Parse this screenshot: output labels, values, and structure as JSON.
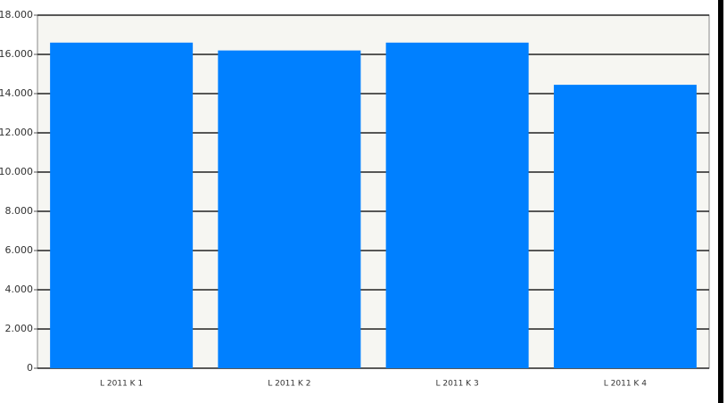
{
  "chart_data": {
    "type": "bar",
    "categories": [
      "L 2011 K 1",
      "L 2011 K 2",
      "L 2011 K 3",
      "L 2011 K 4"
    ],
    "values": [
      16600,
      16200,
      16600,
      14450
    ],
    "color": "#0080ff",
    "ylim": [
      0,
      18000
    ],
    "yticks": [
      0,
      {
        "value": 2000,
        "label": "2.000"
      },
      {
        "value": 4000,
        "label": "4.000"
      },
      {
        "value": 6000,
        "label": "6.000"
      },
      {
        "value": 8000,
        "label": "8.000"
      },
      {
        "value": 10000,
        "label": "10.000"
      },
      {
        "value": 12000,
        "label": "12.000"
      },
      {
        "value": 14000,
        "label": "14.000"
      },
      {
        "value": 16000,
        "label": "16.000"
      },
      {
        "value": 18000,
        "label": "18.000"
      }
    ],
    "grid": true
  }
}
